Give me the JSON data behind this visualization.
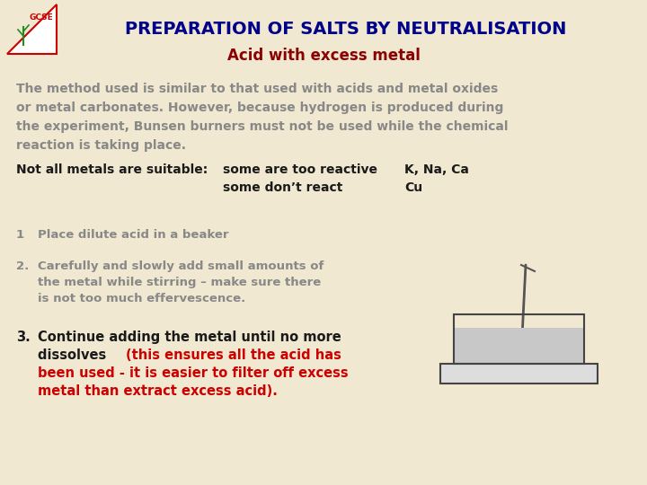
{
  "title": "PREPARATION OF SALTS BY NEUTRALISATION",
  "subtitle": "Acid with excess metal",
  "bg_color": "#f0e8d0",
  "title_color": "#00008B",
  "subtitle_color": "#8B0000",
  "para_color": "#888888",
  "bold_black": "#1a1a1a",
  "red_text": "#cc0000",
  "paragraph_lines": [
    "The method used is similar to that used with acids and metal oxides",
    "or metal carbonates. However, because hydrogen is produced during",
    "the experiment, Bunsen burners must not be used while the chemical",
    "reaction is taking place."
  ],
  "row1_left": "Not all metals are suitable:",
  "row1_mid_1": "some are too reactive",
  "row1_mid_2": "some don’t react",
  "row1_right_1": "K, Na, Ca",
  "row1_right_2": "Cu",
  "step1_num": "1",
  "step1_text": "Place dilute acid in a beaker",
  "step2_num": "2.",
  "step2_lines": [
    "Carefully and slowly add small amounts of",
    "the metal while stirring – make sure there",
    "is not too much effervescence."
  ],
  "step3_num": "3.",
  "step3_black_1": "Continue adding the metal until no more",
  "step3_black_2": "dissolves ",
  "step3_red_inline": "(this ensures all the acid has",
  "step3_red_lines": [
    "been used - it is easier to filter off excess",
    "metal than extract excess acid)."
  ]
}
